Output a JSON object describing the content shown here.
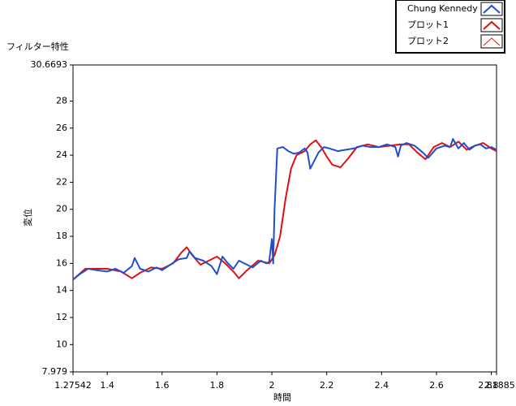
{
  "chart_data": {
    "type": "line",
    "title": "フィルター特性",
    "x_label": "時間",
    "y_label": "変位",
    "xlim": [
      1.27542,
      2.81885
    ],
    "xticks": [
      1.27542,
      1.4,
      1.6,
      1.8,
      2,
      2.2,
      2.4,
      2.6,
      2.8,
      2.81885
    ],
    "ylim": [
      7.979,
      30.6693
    ],
    "yticks": [
      7.979,
      10,
      12,
      14,
      16,
      18,
      20,
      22,
      24,
      26,
      28,
      30.6693
    ],
    "series": [
      {
        "name": "Chung Kennedy",
        "color": "#1f4fd0",
        "line_width": 2,
        "x": [
          1.27542,
          1.3,
          1.33,
          1.36,
          1.4,
          1.43,
          1.46,
          1.49,
          1.5,
          1.52,
          1.55,
          1.58,
          1.6,
          1.63,
          1.66,
          1.69,
          1.7,
          1.72,
          1.75,
          1.78,
          1.8,
          1.82,
          1.84,
          1.86,
          1.88,
          1.9,
          1.93,
          1.96,
          1.98,
          1.99,
          2,
          2.005,
          2.01,
          2.02,
          2.04,
          2.06,
          2.08,
          2.1,
          2.12,
          2.13,
          2.14,
          2.15,
          2.17,
          2.19,
          2.21,
          2.24,
          2.27,
          2.3,
          2.33,
          2.36,
          2.39,
          2.42,
          2.45,
          2.46,
          2.47,
          2.49,
          2.52,
          2.55,
          2.57,
          2.6,
          2.63,
          2.65,
          2.66,
          2.68,
          2.7,
          2.72,
          2.74,
          2.76,
          2.78,
          2.8,
          2.81885
        ],
        "values": [
          14.8,
          15.2,
          15.6,
          15.5,
          15.4,
          15.6,
          15.3,
          15.8,
          16.4,
          15.6,
          15.4,
          15.7,
          15.5,
          15.9,
          16.3,
          16.4,
          16.9,
          16.4,
          16.2,
          15.8,
          15.2,
          16.5,
          16,
          15.6,
          16.2,
          16,
          15.7,
          16.2,
          16,
          16.1,
          17.8,
          16,
          20,
          24.5,
          24.6,
          24.3,
          24.1,
          24.2,
          24.5,
          24.2,
          23,
          23.4,
          24.2,
          24.6,
          24.5,
          24.3,
          24.4,
          24.5,
          24.7,
          24.6,
          24.6,
          24.8,
          24.6,
          23.9,
          24.7,
          24.9,
          24.7,
          24.2,
          23.8,
          24.5,
          24.7,
          24.6,
          25.2,
          24.5,
          24.9,
          24.4,
          24.7,
          24.8,
          24.5,
          24.6,
          24.4
        ]
      },
      {
        "name": "プロット1",
        "color": "#e01010",
        "line_width": 2,
        "x": [
          1.27542,
          1.32,
          1.36,
          1.4,
          1.45,
          1.49,
          1.52,
          1.56,
          1.6,
          1.64,
          1.67,
          1.69,
          1.71,
          1.74,
          1.77,
          1.8,
          1.83,
          1.86,
          1.88,
          1.91,
          1.95,
          1.99,
          2.01,
          2.03,
          2.05,
          2.07,
          2.09,
          2.12,
          2.14,
          2.16,
          2.18,
          2.2,
          2.22,
          2.25,
          2.28,
          2.31,
          2.35,
          2.39,
          2.43,
          2.47,
          2.5,
          2.53,
          2.56,
          2.59,
          2.62,
          2.65,
          2.68,
          2.71,
          2.74,
          2.77,
          2.8,
          2.81885
        ],
        "values": [
          14.8,
          15.6,
          15.6,
          15.6,
          15.4,
          14.9,
          15.3,
          15.7,
          15.6,
          16,
          16.8,
          17.2,
          16.6,
          15.9,
          16.2,
          16.5,
          16,
          15.4,
          14.9,
          15.5,
          16.2,
          16,
          16.6,
          18,
          20.8,
          23,
          24,
          24.3,
          24.8,
          25.1,
          24.6,
          23.9,
          23.3,
          23.1,
          23.8,
          24.6,
          24.8,
          24.6,
          24.7,
          24.8,
          24.8,
          24.2,
          23.7,
          24.6,
          24.9,
          24.6,
          25,
          24.4,
          24.7,
          24.9,
          24.5,
          24.3
        ]
      },
      {
        "name": "プロット2",
        "color": "#e01010",
        "line_width": 1,
        "x": [],
        "values": []
      }
    ]
  }
}
